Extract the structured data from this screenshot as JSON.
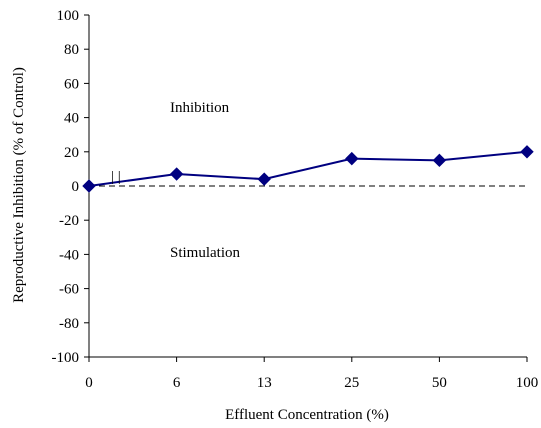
{
  "chart_data": {
    "type": "line",
    "xlabel": "Effluent Concentration (%)",
    "ylabel": "Reproductive Inhibition (% of Control)",
    "categories": [
      "0",
      "6",
      "13",
      "25",
      "50",
      "100"
    ],
    "series": [
      {
        "values": [
          0,
          7,
          4,
          16,
          15,
          20
        ]
      }
    ],
    "ylim": [
      -100,
      100
    ],
    "yticks": [
      "100",
      "80",
      "60",
      "40",
      "20",
      "0",
      "-20",
      "-40",
      "-60",
      "-80",
      "-100"
    ],
    "annotations": {
      "upper": "Inhibition",
      "lower": "Stimulation",
      "marker": "| |"
    },
    "grid": false,
    "reference_line": {
      "y": 0,
      "style": "dashed"
    },
    "colors": {
      "series": "#000080",
      "axis": "#000000",
      "reference": "#000000"
    }
  }
}
